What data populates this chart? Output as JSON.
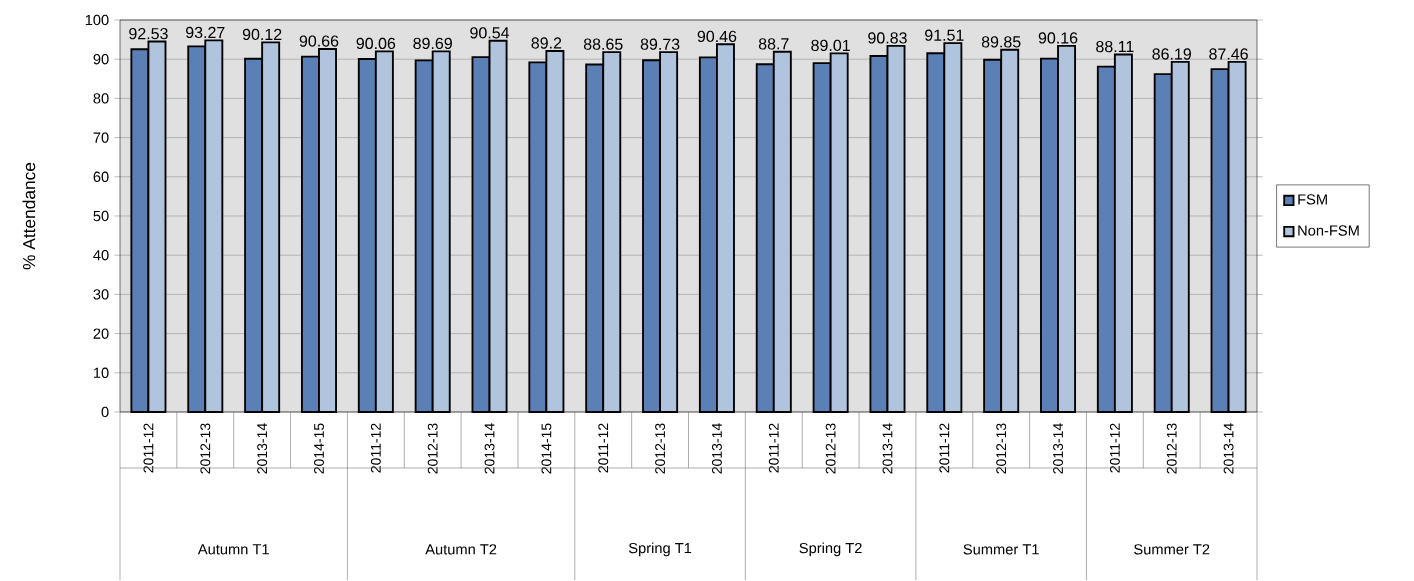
{
  "chart_data": {
    "type": "bar",
    "ylabel": "% Attendance",
    "categories": [
      "2011-12",
      "2012-13",
      "2013-14",
      "2014-15",
      "2011-12",
      "2012-13",
      "2013-14",
      "2014-15",
      "2011-12",
      "2012-13",
      "2013-14",
      "2011-12",
      "2012-13",
      "2013-14",
      "2011-12",
      "2012-13",
      "2013-14",
      "2011-12",
      "2012-13",
      "2013-14"
    ],
    "series": [
      {
        "name": "FSM",
        "color": "#5b80b6",
        "values": [
          92.53,
          93.27,
          90.12,
          90.66,
          90.06,
          89.69,
          90.54,
          89.2,
          88.65,
          89.73,
          90.46,
          88.7,
          89.01,
          90.83,
          91.51,
          89.85,
          90.16,
          88.11,
          86.19,
          87.46
        ],
        "value_labels": [
          "92.53",
          "93.27",
          "90.12",
          "90.66",
          "90.06",
          "89.69",
          "90.54",
          "89.2",
          "88.65",
          "89.73",
          "90.46",
          "88.7",
          "89.01",
          "90.83",
          "91.51",
          "89.85",
          "90.16",
          "88.11",
          "86.19",
          "87.46"
        ]
      },
      {
        "name": "Non-FSM",
        "color": "#b0c4de",
        "values": [
          94.5,
          94.8,
          94.3,
          92.6,
          92.0,
          92.0,
          94.7,
          92.1,
          91.8,
          91.8,
          93.8,
          91.9,
          91.5,
          93.4,
          94.1,
          92.4,
          93.4,
          91.2,
          89.3,
          89.3
        ]
      }
    ],
    "ylim": [
      0,
      100
    ],
    "yticks": [
      0,
      10,
      20,
      30,
      40,
      50,
      60,
      70,
      80,
      90,
      100
    ],
    "grid": "y",
    "legend": "right",
    "annotations": [
      "Autumn T1",
      "Autumn T2",
      "Spring T1",
      "Spring T2",
      "Summer T1",
      "Summer T2"
    ]
  }
}
